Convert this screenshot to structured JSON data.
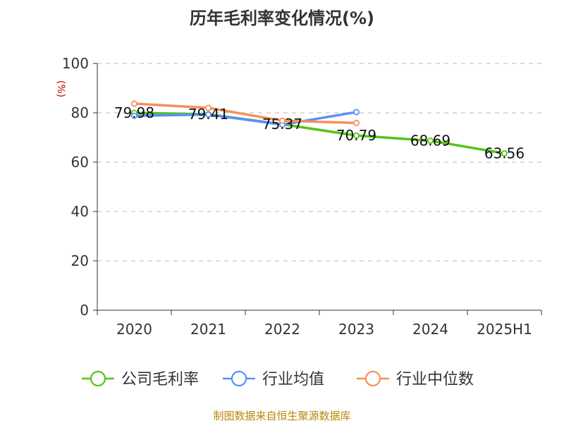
{
  "chart_data": {
    "type": "line",
    "title": "历年毛利率变化情况(%)",
    "ylabel": "(%)",
    "xlabel": "",
    "ylim": [
      0,
      100
    ],
    "yticks": [
      0,
      20,
      40,
      60,
      80,
      100
    ],
    "grid": true,
    "legend_position": "bottom",
    "categories": [
      "2020",
      "2021",
      "2022",
      "2023",
      "2024",
      "2025H1"
    ],
    "series": [
      {
        "name": "公司毛利率",
        "color": "#52c41a",
        "values": [
          79.98,
          79.41,
          75.37,
          70.79,
          68.69,
          63.56
        ],
        "labels": [
          "79.98",
          "79.41",
          "75.37",
          "70.79",
          "68.69",
          "63.56"
        ]
      },
      {
        "name": "行业均值",
        "color": "#5b8ff9",
        "values": [
          78.8,
          79.3,
          75.2,
          80.3,
          null,
          null
        ]
      },
      {
        "name": "行业中位数",
        "color": "#f6905a",
        "values": [
          83.7,
          82.0,
          76.8,
          75.9,
          null,
          null
        ]
      }
    ]
  },
  "source_text": "制图数据来自恒生聚源数据库"
}
